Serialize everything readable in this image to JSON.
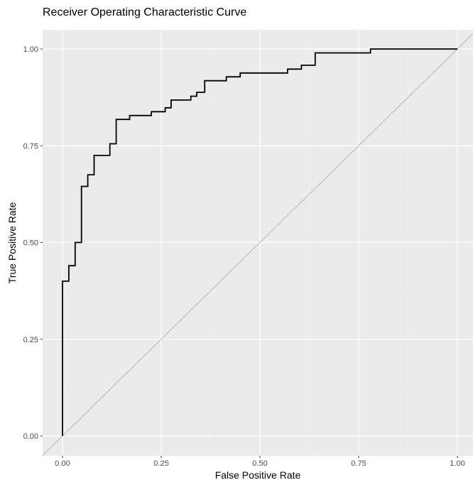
{
  "chart_data": {
    "type": "line",
    "title": "Receiver Operating Characteristic Curve",
    "xlabel": "False Positive Rate",
    "ylabel": "True Positive Rate",
    "xlim": [
      -0.05,
      1.04
    ],
    "ylim": [
      -0.05,
      1.05
    ],
    "x_ticks": [
      0.0,
      0.25,
      0.5,
      0.75,
      1.0
    ],
    "x_tick_labels": [
      "0.00",
      "0.25",
      "0.50",
      "0.75",
      "1.00"
    ],
    "y_ticks": [
      0.0,
      0.25,
      0.5,
      0.75,
      1.0
    ],
    "y_tick_labels": [
      "0.00",
      "0.25",
      "0.50",
      "0.75",
      "1.00"
    ],
    "grid": true,
    "background": "#ebebeb",
    "grid_major_color": "#ffffff",
    "curve_color": "#000000",
    "reference_line_color": "#bebebe",
    "series": [
      {
        "type": "step",
        "x": [
          0.0,
          0.0,
          0.016,
          0.016,
          0.032,
          0.032,
          0.048,
          0.048,
          0.064,
          0.064,
          0.08,
          0.08,
          0.12,
          0.12,
          0.136,
          0.136,
          0.17,
          0.17,
          0.225,
          0.225,
          0.26,
          0.26,
          0.275,
          0.275,
          0.325,
          0.325,
          0.34,
          0.34,
          0.36,
          0.36,
          0.415,
          0.415,
          0.45,
          0.45,
          0.57,
          0.57,
          0.605,
          0.605,
          0.64,
          0.64,
          0.78,
          0.78,
          1.0
        ],
        "y": [
          0.0,
          0.4,
          0.4,
          0.44,
          0.44,
          0.5,
          0.5,
          0.645,
          0.645,
          0.675,
          0.675,
          0.725,
          0.725,
          0.755,
          0.755,
          0.818,
          0.818,
          0.828,
          0.828,
          0.838,
          0.838,
          0.848,
          0.848,
          0.868,
          0.868,
          0.878,
          0.878,
          0.888,
          0.888,
          0.918,
          0.918,
          0.928,
          0.928,
          0.938,
          0.938,
          0.948,
          0.948,
          0.958,
          0.958,
          0.99,
          0.99,
          1.0,
          1.0
        ]
      },
      {
        "type": "reference",
        "x": [
          -0.05,
          1.04
        ],
        "y": [
          -0.05,
          1.04
        ]
      }
    ]
  }
}
